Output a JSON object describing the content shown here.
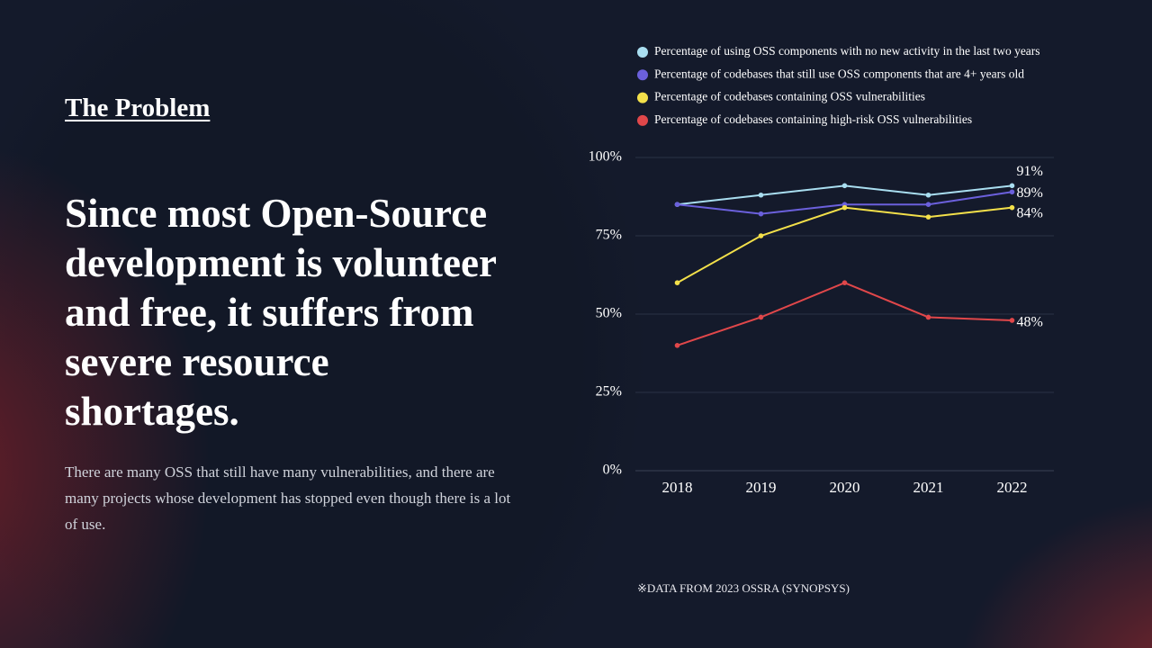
{
  "heading": "The Problem",
  "headline": "Since most Open-Source development is volunteer and free, it suffers from severe resource shortages.",
  "body": "There are many OSS that still have many vulnerabilities, and there are many projects whose development has stopped even though there is a lot of use.",
  "source": "※DATA FROM 2023 OSSRA (SYNOPSYS)",
  "chart_data": {
    "type": "line",
    "categories": [
      "2018",
      "2019",
      "2020",
      "2021",
      "2022"
    ],
    "series": [
      {
        "name": "Percentage of using OSS components with no new activity in the last two years",
        "color": "#a9def0",
        "values": [
          85,
          88,
          91,
          88,
          91
        ],
        "value_labels": [
          null,
          null,
          null,
          null,
          "91%"
        ]
      },
      {
        "name": "Percentage of codebases that still use OSS components that are 4+ years old",
        "color": "#6b60dc",
        "values": [
          85,
          82,
          85,
          85,
          89
        ],
        "value_labels": [
          null,
          null,
          null,
          null,
          "89%"
        ]
      },
      {
        "name": "Percentage of codebases containing OSS vulnerabilities",
        "color": "#f3e04a",
        "values": [
          60,
          75,
          84,
          81,
          84
        ],
        "value_labels": [
          null,
          null,
          null,
          null,
          "84%"
        ]
      },
      {
        "name": "Percentage of codebases containing high-risk OSS vulnerabilities",
        "color": "#e0474a",
        "values": [
          40,
          49,
          60,
          49,
          48
        ],
        "value_labels": [
          null,
          null,
          null,
          null,
          "48%"
        ]
      }
    ],
    "ylim": [
      0,
      100
    ],
    "yticks": [
      {
        "value": 0,
        "label": "0%"
      },
      {
        "value": 25,
        "label": "25%"
      },
      {
        "value": 50,
        "label": "50%"
      },
      {
        "value": 75,
        "label": "75%"
      },
      {
        "value": 100,
        "label": "100%"
      }
    ],
    "grid": true
  }
}
